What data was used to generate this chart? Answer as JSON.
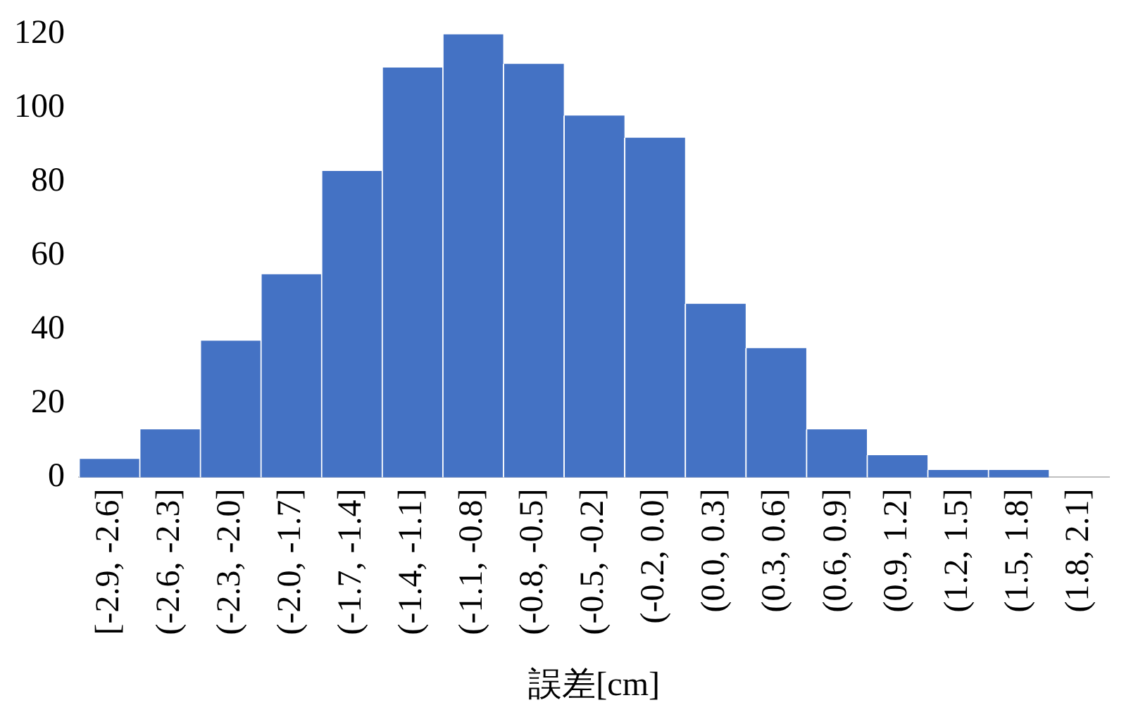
{
  "chart_data": {
    "type": "bar",
    "xlabel": "誤差[cm]",
    "categories": [
      "[-2.9, -2.6]",
      "(-2.6, -2.3]",
      "(-2.3, -2.0]",
      "(-2.0, -1.7]",
      "(-1.7, -1.4]",
      "(-1.4, -1.1]",
      "(-1.1, -0.8]",
      "(-0.8, -0.5]",
      "(-0.5, -0.2]",
      "(-0.2, 0.0]",
      "(0.0, 0.3]",
      "(0.3, 0.6]",
      "(0.6, 0.9]",
      "(0.9, 1.2]",
      "(1.2, 1.5]",
      "(1.5, 1.8]",
      "(1.8, 2.1]"
    ],
    "values": [
      5,
      13,
      37,
      55,
      83,
      111,
      120,
      112,
      98,
      92,
      47,
      35,
      13,
      6,
      2,
      2,
      0
    ],
    "color": "#4472c4",
    "ylim": [
      0,
      120
    ],
    "yticks": [
      0,
      20,
      40,
      60,
      80,
      100,
      120
    ],
    "grid": false,
    "legend": false
  }
}
